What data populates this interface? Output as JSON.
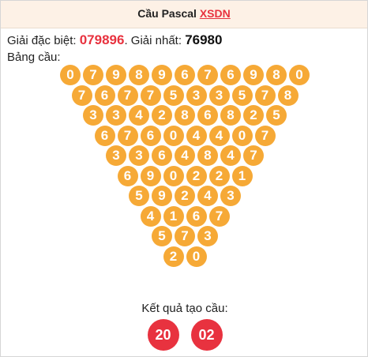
{
  "header": {
    "title": "Cầu Pascal",
    "link": "XSDN"
  },
  "info": {
    "special_label": "Giải đặc biệt:",
    "special_value": "079896",
    "separator": ".",
    "first_label": "Giải nhất:",
    "first_value": "76980"
  },
  "table_label": "Bảng cầu:",
  "rows": [
    [
      "0",
      "7",
      "9",
      "8",
      "9",
      "6",
      "7",
      "6",
      "9",
      "8",
      "0"
    ],
    [
      "7",
      "6",
      "7",
      "7",
      "5",
      "3",
      "3",
      "5",
      "7",
      "8"
    ],
    [
      "3",
      "3",
      "4",
      "2",
      "8",
      "6",
      "8",
      "2",
      "5"
    ],
    [
      "6",
      "7",
      "6",
      "0",
      "4",
      "4",
      "0",
      "7"
    ],
    [
      "3",
      "3",
      "6",
      "4",
      "8",
      "4",
      "7"
    ],
    [
      "6",
      "9",
      "0",
      "2",
      "2",
      "1"
    ],
    [
      "5",
      "9",
      "2",
      "4",
      "3"
    ],
    [
      "4",
      "1",
      "6",
      "7"
    ],
    [
      "5",
      "7",
      "3"
    ],
    [
      "2",
      "0"
    ]
  ],
  "result_label": "Kết quả tạo cầu:",
  "results": [
    "20",
    "02"
  ],
  "colors": {
    "ball": "#f6a936",
    "result": "#e8323f",
    "accent": "#e8323f"
  }
}
